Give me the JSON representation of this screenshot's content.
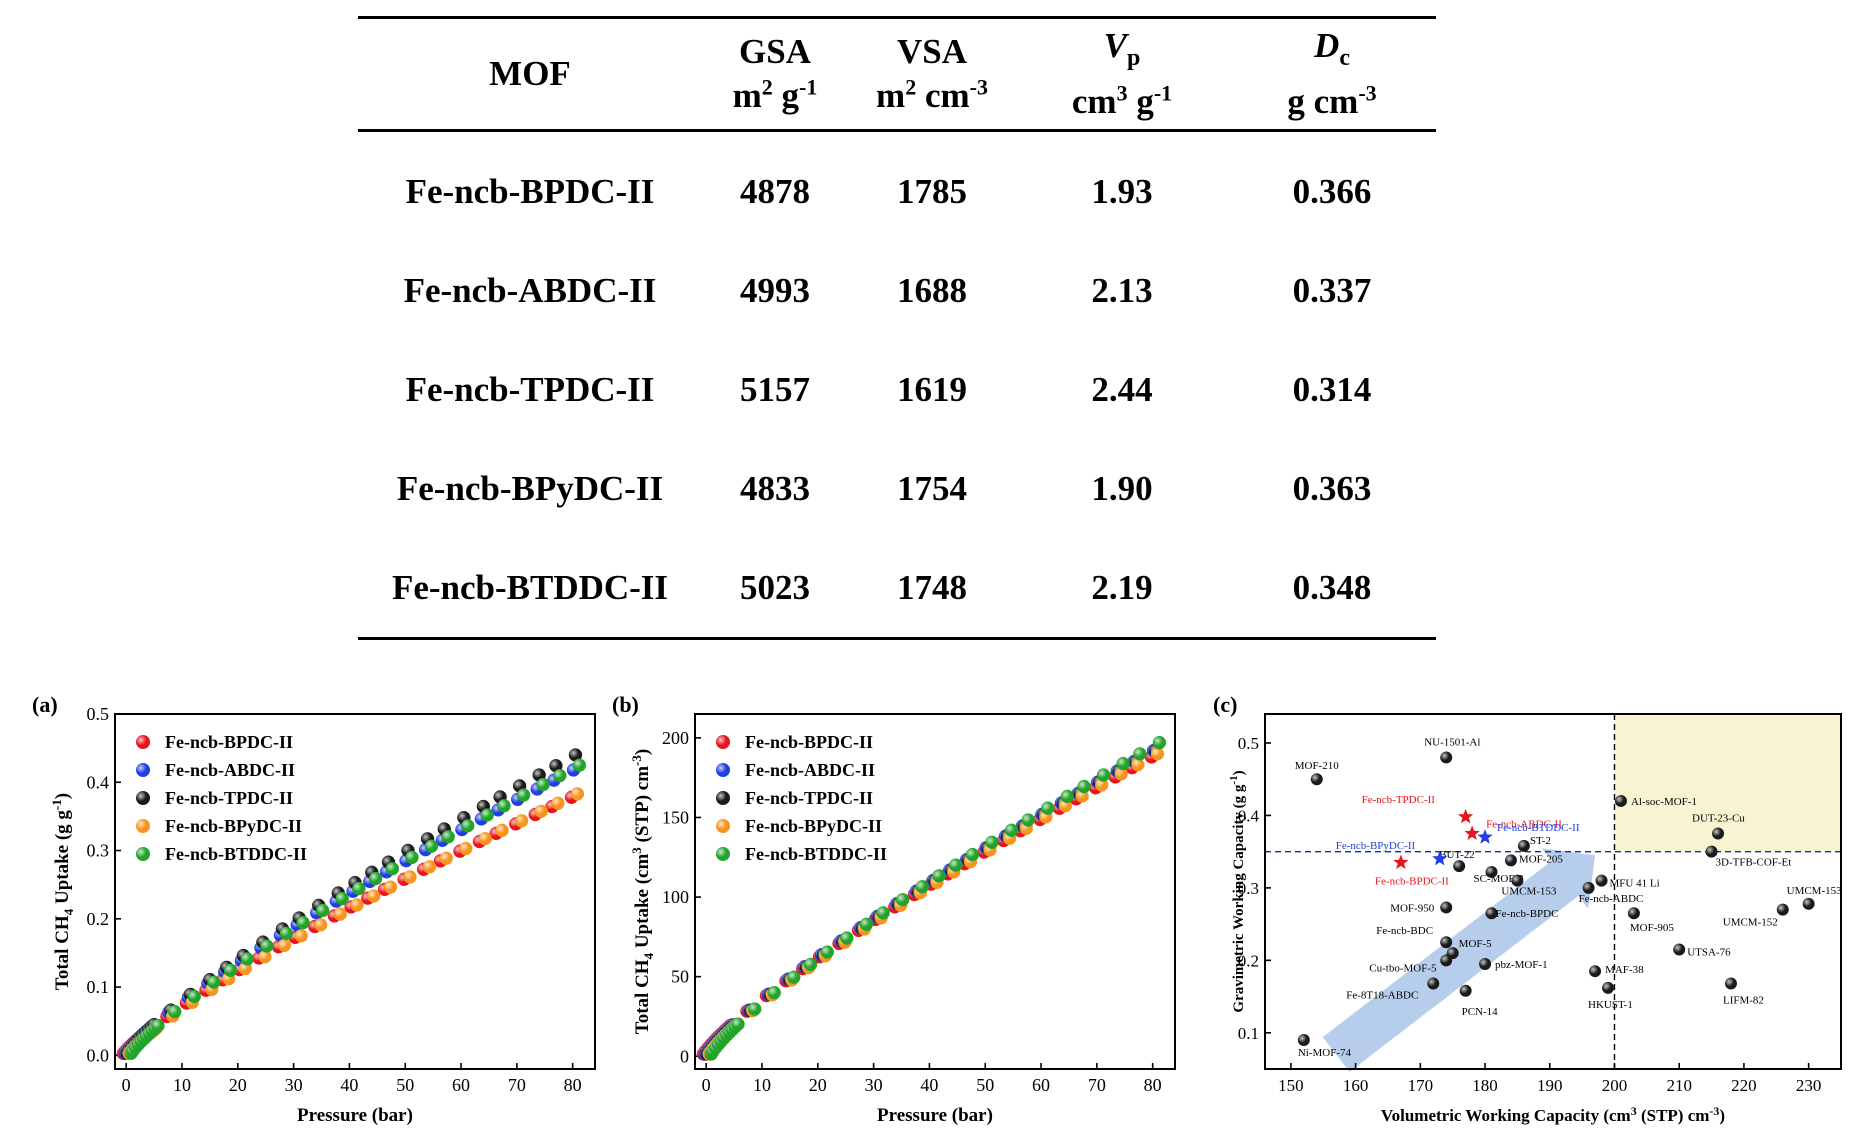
{
  "table": {
    "headers": [
      {
        "name": "MOF",
        "unit": ""
      },
      {
        "name": "GSA",
        "unit_base": "m",
        "unit_sup1": "2",
        "unit_mid": " g",
        "unit_sup2": "-1"
      },
      {
        "name": "VSA",
        "unit_base": "m",
        "unit_sup1": "2",
        "unit_mid": " cm",
        "unit_sup2": "-3"
      },
      {
        "name": "V",
        "name_sub": "p",
        "unit_base": "cm",
        "unit_sup1": "3",
        "unit_mid": " g",
        "unit_sup2": "-1"
      },
      {
        "name": "D",
        "name_sub": "c",
        "unit_base": "g cm",
        "unit_sup1": "",
        "unit_mid": "",
        "unit_sup2": "-3"
      }
    ],
    "rows": [
      [
        "Fe-ncb-BPDC-II",
        "4878",
        "1785",
        "1.93",
        "0.366"
      ],
      [
        "Fe-ncb-ABDC-II",
        "4993",
        "1688",
        "2.13",
        "0.337"
      ],
      [
        "Fe-ncb-TPDC-II",
        "5157",
        "1619",
        "2.44",
        "0.314"
      ],
      [
        "Fe-ncb-BPyDC-II",
        "4833",
        "1754",
        "1.90",
        "0.363"
      ],
      [
        "Fe-ncb-BTDDC-II",
        "5023",
        "1748",
        "2.19",
        "0.348"
      ]
    ]
  },
  "chart_data": [
    {
      "panel": "(a)",
      "type": "scatter",
      "xlabel": "Pressure (bar)",
      "ylabel_pre": "Total CH",
      "ylabel_sub": "4",
      "ylabel_post": " Uptake (g g",
      "ylabel_sup": "-1",
      "ylabel_end": ")",
      "xlim": [
        -2,
        84
      ],
      "ylim": [
        -0.02,
        0.5
      ],
      "xticks": [
        0,
        10,
        20,
        30,
        40,
        50,
        60,
        70,
        80
      ],
      "yticks": [
        0.0,
        0.1,
        0.2,
        0.3,
        0.4,
        0.5
      ],
      "yticklabels": [
        "0.0",
        "0.1",
        "0.2",
        "0.3",
        "0.4",
        "0.5"
      ],
      "x": [
        0.2,
        0.5,
        1.0,
        1.5,
        2.0,
        2.5,
        3.0,
        3.5,
        4.0,
        4.5,
        5.0,
        8,
        11.5,
        15,
        18,
        21,
        24.5,
        28,
        31,
        34.5,
        38,
        41,
        44,
        47,
        50.5,
        54,
        57,
        60.5,
        64,
        67,
        70.5,
        74,
        77,
        80.5
      ],
      "series": [
        {
          "name": "Fe-ncb-BPDC-II",
          "color": "#e8141c",
          "y_end": 0.378
        },
        {
          "name": "Fe-ncb-ABDC-II",
          "color": "#1f3fe0",
          "y_end": 0.418
        },
        {
          "name": "Fe-ncb-TPDC-II",
          "color": "#1a1a1a",
          "y_end": 0.44
        },
        {
          "name": "Fe-ncb-BPyDC-II",
          "color": "#f7941d",
          "y_end": 0.383
        },
        {
          "name": "Fe-ncb-BTDDC-II",
          "color": "#22a32a",
          "y_end": 0.425
        }
      ]
    },
    {
      "panel": "(b)",
      "type": "scatter",
      "xlabel": "Pressure (bar)",
      "ylabel_pre": "Total CH",
      "ylabel_sub": "4",
      "ylabel_post": " Uptake (cm",
      "ylabel_sup": "3",
      "ylabel_end": " (STP) cm",
      "ylabel_sup2": "-3",
      "ylabel_close": ")",
      "xlim": [
        -2,
        84
      ],
      "ylim": [
        -8,
        215
      ],
      "xticks": [
        0,
        10,
        20,
        30,
        40,
        50,
        60,
        70,
        80
      ],
      "yticks": [
        0,
        50,
        100,
        150,
        200
      ],
      "yticklabels": [
        "0",
        "50",
        "100",
        "150",
        "200"
      ],
      "x": [
        0.2,
        0.5,
        1.0,
        1.5,
        2.0,
        2.5,
        3.0,
        3.5,
        4.0,
        4.5,
        5.0,
        8,
        11.5,
        15,
        18,
        21,
        24.5,
        28,
        31,
        34.5,
        38,
        41,
        44,
        47,
        50.5,
        54,
        57,
        60.5,
        64,
        67,
        70.5,
        74,
        77,
        80.5
      ],
      "series": [
        {
          "name": "Fe-ncb-BPDC-II",
          "color": "#e8141c",
          "y_end": 188
        },
        {
          "name": "Fe-ncb-ABDC-II",
          "color": "#1f3fe0",
          "y_end": 192
        },
        {
          "name": "Fe-ncb-TPDC-II",
          "color": "#1a1a1a",
          "y_end": 192
        },
        {
          "name": "Fe-ncb-BPyDC-II",
          "color": "#f7941d",
          "y_end": 190
        },
        {
          "name": "Fe-ncb-BTDDC-II",
          "color": "#22a32a",
          "y_end": 197
        }
      ]
    },
    {
      "panel": "(c)",
      "type": "scatter",
      "xlabel_pre": "Volumetric Working Capacity (cm",
      "xlabel_sup": "3",
      "xlabel_post": " (STP) cm",
      "xlabel_sup2": "-3",
      "xlabel_end": ")",
      "ylabel_pre": "Gravimetric Working Capacity (g g",
      "ylabel_sup": "-1",
      "ylabel_end": ")",
      "xlim": [
        146,
        235
      ],
      "ylim": [
        0.05,
        0.54
      ],
      "xticks": [
        150,
        160,
        170,
        180,
        190,
        200,
        210,
        220,
        230
      ],
      "yticks": [
        0.1,
        0.2,
        0.3,
        0.4,
        0.5
      ],
      "yticklabels": [
        "0.1",
        "0.2",
        "0.3",
        "0.4",
        "0.5"
      ],
      "threshold_x": 200,
      "threshold_y": 0.35,
      "points": [
        {
          "x": 152,
          "y": 0.09,
          "label": "Ni-MOF-74"
        },
        {
          "x": 154,
          "y": 0.45,
          "label": "MOF-210"
        },
        {
          "x": 174,
          "y": 0.48,
          "label": "NU-1501-Al"
        },
        {
          "x": 201,
          "y": 0.42,
          "label": "Al-soc-MOF-1"
        },
        {
          "x": 216,
          "y": 0.375,
          "label": "DUT-23-Cu"
        },
        {
          "x": 215,
          "y": 0.35,
          "label": "3D-TFB-COF-Et"
        },
        {
          "x": 176,
          "y": 0.33,
          "label": "BUT-22"
        },
        {
          "x": 186,
          "y": 0.358,
          "label": "ST-2"
        },
        {
          "x": 184,
          "y": 0.338,
          "label": "MOF-205"
        },
        {
          "x": 181,
          "y": 0.322,
          "label": "SC-MOF-3"
        },
        {
          "x": 198,
          "y": 0.31,
          "label": "MFU 41 Li"
        },
        {
          "x": 196,
          "y": 0.3,
          "label": "Fe-ncb-ABDC"
        },
        {
          "x": 185,
          "y": 0.31,
          "label": "UMCM-153"
        },
        {
          "x": 230,
          "y": 0.278,
          "label": "UMCM-153"
        },
        {
          "x": 226,
          "y": 0.27,
          "label": "UMCM-152"
        },
        {
          "x": 174,
          "y": 0.273,
          "label": "MOF-950"
        },
        {
          "x": 181,
          "y": 0.265,
          "label": "Fe-ncb-BPDC"
        },
        {
          "x": 203,
          "y": 0.265,
          "label": "MOF-905"
        },
        {
          "x": 174,
          "y": 0.225,
          "label": "Fe-ncb-BDC"
        },
        {
          "x": 175,
          "y": 0.21,
          "label": "MOF-5"
        },
        {
          "x": 210,
          "y": 0.215,
          "label": "UTSA-76"
        },
        {
          "x": 180,
          "y": 0.195,
          "label": "pbz-MOF-1"
        },
        {
          "x": 197,
          "y": 0.185,
          "label": "MAF-38"
        },
        {
          "x": 172,
          "y": 0.168,
          "label": "Cu-tbo-MOF-5"
        },
        {
          "x": 218,
          "y": 0.168,
          "label": "LIFM-82"
        },
        {
          "x": 199,
          "y": 0.162,
          "label": "HKUST-1"
        },
        {
          "x": 177,
          "y": 0.158,
          "label": "PCN-14"
        },
        {
          "x": 174,
          "y": 0.2,
          "label": "Fe-8T18-ABDC"
        }
      ],
      "stars": [
        {
          "x": 177,
          "y": 0.398,
          "label": "Fe-ncb-TPDC-II",
          "color": "#e8141c"
        },
        {
          "x": 178,
          "y": 0.375,
          "label": "Fe-ncb-ABDC-II",
          "color": "#e8141c"
        },
        {
          "x": 180,
          "y": 0.37,
          "label": "Fe-ncb-BTDDC-II",
          "color": "#1f3fe0"
        },
        {
          "x": 173,
          "y": 0.34,
          "label": "Fe-ncb-BPyDC-II",
          "color": "#1f3fe0"
        },
        {
          "x": 167,
          "y": 0.335,
          "label": "Fe-ncb-BPDC-II",
          "color": "#e8141c"
        }
      ]
    }
  ]
}
